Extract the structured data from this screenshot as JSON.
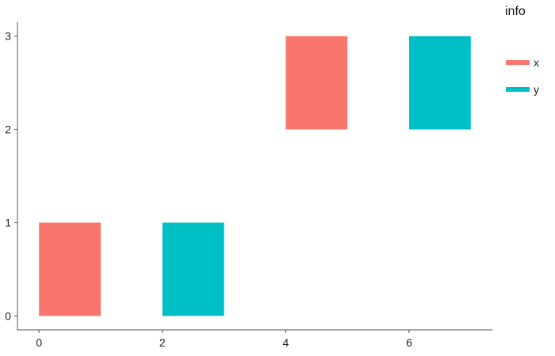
{
  "chart_data": {
    "type": "bar",
    "title": "",
    "xlabel": "",
    "ylabel": "",
    "xlim": [
      -0.35,
      7.35
    ],
    "ylim": [
      -0.15,
      3.15
    ],
    "x_ticks": [
      0,
      2,
      4,
      6
    ],
    "y_ticks": [
      0,
      1,
      2,
      3
    ],
    "grid": false,
    "legend": {
      "title": "info",
      "placement": "top-right",
      "entries": [
        {
          "label": "x",
          "color": "#F8766D"
        },
        {
          "label": "y",
          "color": "#00BFC4"
        }
      ]
    },
    "rects": [
      {
        "series": "x",
        "xmin": 0,
        "xmax": 1,
        "ymin": 0,
        "ymax": 1
      },
      {
        "series": "y",
        "xmin": 2,
        "xmax": 3,
        "ymin": 0,
        "ymax": 1
      },
      {
        "series": "x",
        "xmin": 4,
        "xmax": 5,
        "ymin": 2,
        "ymax": 3
      },
      {
        "series": "y",
        "xmin": 6,
        "xmax": 7,
        "ymin": 2,
        "ymax": 3
      }
    ]
  }
}
